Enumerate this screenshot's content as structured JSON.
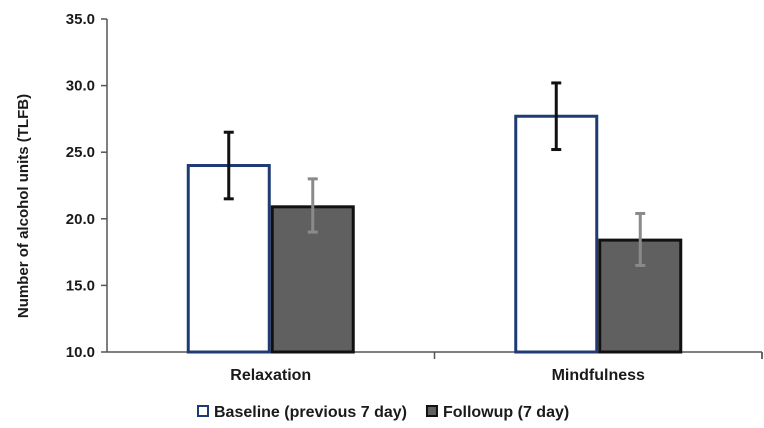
{
  "chart_data": {
    "type": "bar",
    "categories": [
      "Relaxation",
      "Mindfulness"
    ],
    "series": [
      {
        "name": "Baseline (previous 7 day)",
        "values": [
          24.0,
          27.7
        ],
        "error_low": [
          21.5,
          25.2
        ],
        "error_high": [
          26.5,
          30.2
        ],
        "fill": "#ffffff",
        "stroke": "#1f3b73",
        "error_color": "#111111"
      },
      {
        "name": "Followup (7 day)",
        "values": [
          20.9,
          18.4
        ],
        "error_low": [
          19.0,
          16.5
        ],
        "error_high": [
          23.0,
          20.4
        ],
        "fill": "#606060",
        "stroke": "#111111",
        "error_color": "#8a8a8a"
      }
    ],
    "ylabel": "Number of alcohol units (TLFB)",
    "xlabel": "",
    "ylim": [
      10.0,
      35.0
    ],
    "yticks": [
      "10.0",
      "15.0",
      "20.0",
      "25.0",
      "30.0",
      "35.0"
    ],
    "legend_position": "bottom",
    "grid": false
  }
}
